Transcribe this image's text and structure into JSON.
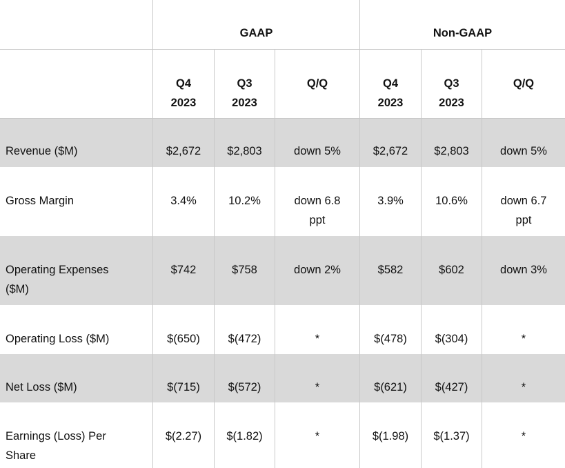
{
  "header": {
    "groups": [
      "GAAP",
      "Non-GAAP"
    ],
    "columns": [
      {
        "line1": "Q4",
        "line2": "2023"
      },
      {
        "line1": "Q3",
        "line2": "2023"
      },
      {
        "line1": "Q/Q",
        "line2": ""
      },
      {
        "line1": "Q4",
        "line2": "2023"
      },
      {
        "line1": "Q3",
        "line2": "2023"
      },
      {
        "line1": "Q/Q",
        "line2": ""
      }
    ]
  },
  "rows": [
    {
      "label": [
        "Revenue ($M)"
      ],
      "shaded": true,
      "cells": [
        [
          "$2,672"
        ],
        [
          "$2,803"
        ],
        [
          "down 5%"
        ],
        [
          "$2,672"
        ],
        [
          "$2,803"
        ],
        [
          "down 5%"
        ]
      ]
    },
    {
      "label": [
        "Gross Margin"
      ],
      "shaded": false,
      "cells": [
        [
          "3.4%"
        ],
        [
          "10.2%"
        ],
        [
          "down 6.8",
          "ppt"
        ],
        [
          "3.9%"
        ],
        [
          "10.6%"
        ],
        [
          "down 6.7",
          "ppt"
        ]
      ]
    },
    {
      "label": [
        "Operating Expenses",
        "($M)"
      ],
      "shaded": true,
      "cells": [
        [
          "$742"
        ],
        [
          "$758"
        ],
        [
          "down 2%"
        ],
        [
          "$582"
        ],
        [
          "$602"
        ],
        [
          "down 3%"
        ]
      ]
    },
    {
      "label": [
        "Operating Loss ($M)"
      ],
      "shaded": false,
      "cells": [
        [
          "$(650)"
        ],
        [
          "$(472)"
        ],
        [
          "*"
        ],
        [
          "$(478)"
        ],
        [
          "$(304)"
        ],
        [
          "*"
        ]
      ]
    },
    {
      "label": [
        "Net Loss ($M)"
      ],
      "shaded": true,
      "cells": [
        [
          "$(715)"
        ],
        [
          "$(572)"
        ],
        [
          "*"
        ],
        [
          "$(621)"
        ],
        [
          "$(427)"
        ],
        [
          "*"
        ]
      ]
    },
    {
      "label": [
        "Earnings (Loss) Per",
        "Share"
      ],
      "shaded": false,
      "cells": [
        [
          "$(2.27)"
        ],
        [
          "$(1.82)"
        ],
        [
          "*"
        ],
        [
          "$(1.98)"
        ],
        [
          "$(1.37)"
        ],
        [
          "*"
        ]
      ]
    }
  ]
}
